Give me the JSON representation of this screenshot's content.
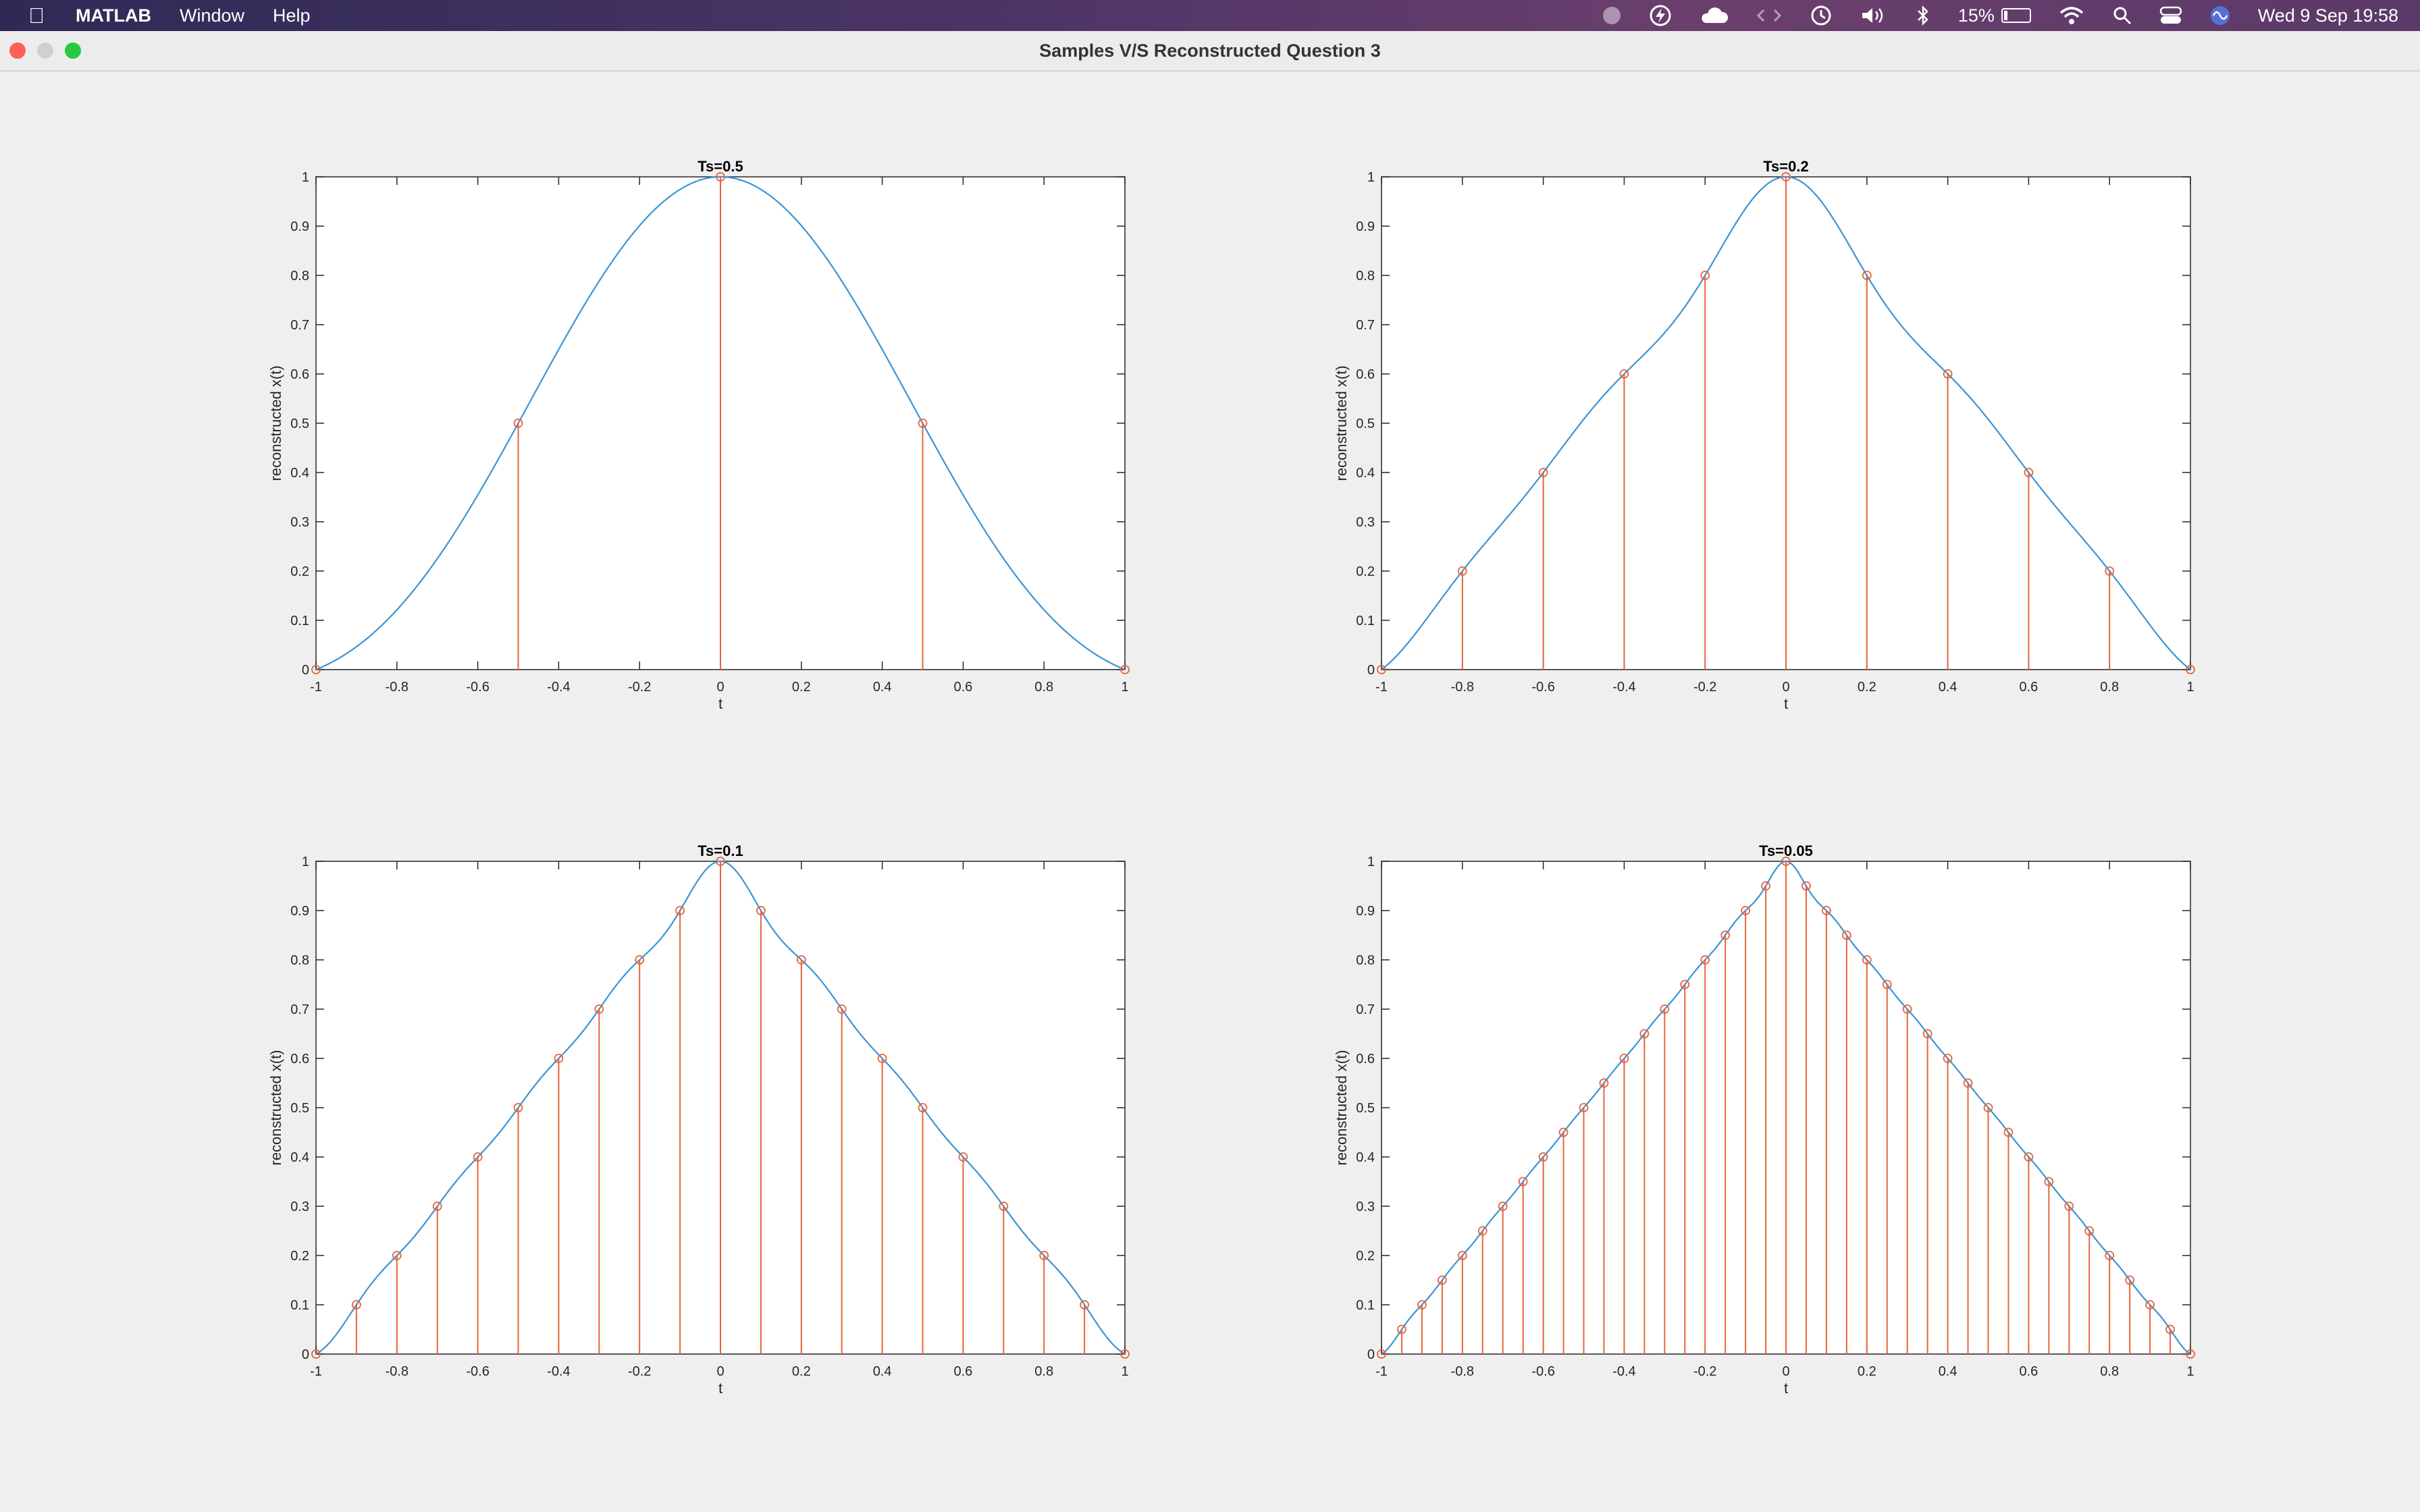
{
  "menubar": {
    "app_name": "MATLAB",
    "items": [
      "Window",
      "Help"
    ],
    "battery_percent": "15%",
    "battery_level": 0.15,
    "datetime": "Wed 9 Sep  19:58"
  },
  "window": {
    "title": "Samples V/S Reconstructed Question 3"
  },
  "colors": {
    "line": "#3a94d6",
    "stem": "#e8633a"
  },
  "chart_data": [
    {
      "type": "line",
      "title": "Ts=0.5",
      "xlabel": "t",
      "ylabel": "reconstructed x(t)",
      "xlim": [
        -1,
        1
      ],
      "ylim": [
        0,
        1
      ],
      "Ts": 0.5,
      "xticks": [
        "-1",
        "-0.8",
        "-0.6",
        "-0.4",
        "-0.2",
        "0",
        "0.2",
        "0.4",
        "0.6",
        "0.8",
        "1"
      ],
      "yticks": [
        "0",
        "0.1",
        "0.2",
        "0.3",
        "0.4",
        "0.5",
        "0.6",
        "0.7",
        "0.8",
        "0.9",
        "1"
      ],
      "series": [
        {
          "kind": "stem",
          "x": [
            -1,
            -0.5,
            0,
            0.5,
            1
          ],
          "y": [
            0,
            0.5,
            1,
            0.5,
            0
          ]
        }
      ]
    },
    {
      "type": "line",
      "title": "Ts=0.2",
      "xlabel": "t",
      "ylabel": "reconstructed x(t)",
      "xlim": [
        -1,
        1
      ],
      "ylim": [
        0,
        1
      ],
      "Ts": 0.2,
      "xticks": [
        "-1",
        "-0.8",
        "-0.6",
        "-0.4",
        "-0.2",
        "0",
        "0.2",
        "0.4",
        "0.6",
        "0.8",
        "1"
      ],
      "yticks": [
        "0",
        "0.1",
        "0.2",
        "0.3",
        "0.4",
        "0.5",
        "0.6",
        "0.7",
        "0.8",
        "0.9",
        "1"
      ],
      "series": [
        {
          "kind": "stem",
          "x": [
            -1,
            -0.8,
            -0.6,
            -0.4,
            -0.2,
            0,
            0.2,
            0.4,
            0.6,
            0.8,
            1
          ],
          "y": [
            0,
            0.2,
            0.4,
            0.6,
            0.8,
            1,
            0.8,
            0.6,
            0.4,
            0.2,
            0
          ]
        }
      ]
    },
    {
      "type": "line",
      "title": "Ts=0.1",
      "xlabel": "t",
      "ylabel": "reconstructed x(t)",
      "xlim": [
        -1,
        1
      ],
      "ylim": [
        0,
        1
      ],
      "Ts": 0.1,
      "xticks": [
        "-1",
        "-0.8",
        "-0.6",
        "-0.4",
        "-0.2",
        "0",
        "0.2",
        "0.4",
        "0.6",
        "0.8",
        "1"
      ],
      "yticks": [
        "0",
        "0.1",
        "0.2",
        "0.3",
        "0.4",
        "0.5",
        "0.6",
        "0.7",
        "0.8",
        "0.9",
        "1"
      ],
      "series": [
        {
          "kind": "stem",
          "x": [
            -1,
            -0.9,
            -0.8,
            -0.7,
            -0.6,
            -0.5,
            -0.4,
            -0.3,
            -0.2,
            -0.1,
            0,
            0.1,
            0.2,
            0.3,
            0.4,
            0.5,
            0.6,
            0.7,
            0.8,
            0.9,
            1
          ],
          "y": [
            0,
            0.1,
            0.2,
            0.3,
            0.4,
            0.5,
            0.6,
            0.7,
            0.8,
            0.9,
            1,
            0.9,
            0.8,
            0.7,
            0.6,
            0.5,
            0.4,
            0.3,
            0.2,
            0.1,
            0
          ]
        }
      ]
    },
    {
      "type": "line",
      "title": "Ts=0.05",
      "xlabel": "t",
      "ylabel": "reconstructed x(t)",
      "xlim": [
        -1,
        1
      ],
      "ylim": [
        0,
        1
      ],
      "Ts": 0.05,
      "xticks": [
        "-1",
        "-0.8",
        "-0.6",
        "-0.4",
        "-0.2",
        "0",
        "0.2",
        "0.4",
        "0.6",
        "0.8",
        "1"
      ],
      "yticks": [
        "0",
        "0.1",
        "0.2",
        "0.3",
        "0.4",
        "0.5",
        "0.6",
        "0.7",
        "0.8",
        "0.9",
        "1"
      ],
      "series": [
        {
          "kind": "stem",
          "x": [
            -1,
            -0.95,
            -0.9,
            -0.85,
            -0.8,
            -0.75,
            -0.7,
            -0.65,
            -0.6,
            -0.55,
            -0.5,
            -0.45,
            -0.4,
            -0.35,
            -0.3,
            -0.25,
            -0.2,
            -0.15,
            -0.1,
            -0.05,
            0,
            0.05,
            0.1,
            0.15,
            0.2,
            0.25,
            0.3,
            0.35,
            0.4,
            0.45,
            0.5,
            0.55,
            0.6,
            0.65,
            0.7,
            0.75,
            0.8,
            0.85,
            0.9,
            0.95,
            1
          ],
          "y": [
            0,
            0.05,
            0.1,
            0.15,
            0.2,
            0.25,
            0.3,
            0.35,
            0.4,
            0.45,
            0.5,
            0.55,
            0.6,
            0.65,
            0.7,
            0.75,
            0.8,
            0.85,
            0.9,
            0.95,
            1,
            0.95,
            0.9,
            0.85,
            0.8,
            0.75,
            0.7,
            0.65,
            0.6,
            0.55,
            0.5,
            0.45,
            0.4,
            0.35,
            0.3,
            0.25,
            0.2,
            0.15,
            0.1,
            0.05,
            0
          ]
        }
      ]
    }
  ]
}
